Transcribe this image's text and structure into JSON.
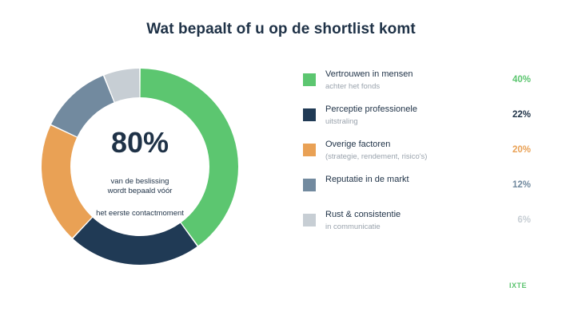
{
  "title": "Wat bepaalt of u op de shortlist komt",
  "center": {
    "value": "80%",
    "subtitle_line1": "van de beslissing",
    "subtitle_line2": "wordt bepaald vóór",
    "subtitle_line3": "het eerste contactmoment"
  },
  "brand": "IXTE",
  "chart_data": {
    "type": "pie",
    "style": "donut",
    "title": "Wat bepaalt of u op de shortlist komt",
    "legend_position": "right",
    "slices": [
      {
        "label": "Vertrouwen in mensen",
        "sublabel": "achter het fonds",
        "value": 40,
        "display": "40%",
        "color": "#5cc670"
      },
      {
        "label": "Perceptie professionele",
        "sublabel": "uitstraling",
        "value": 22,
        "display": "22%",
        "color": "#203a55"
      },
      {
        "label": "Overige factoren",
        "sublabel": "(strategie, rendement, risico's)",
        "value": 20,
        "display": "20%",
        "color": "#e9a155"
      },
      {
        "label": "Reputatie in de markt",
        "sublabel": "",
        "value": 12,
        "display": "12%",
        "color": "#728a9f"
      },
      {
        "label": "Rust & consistentie",
        "sublabel": "in communicatie",
        "value": 6,
        "display": "6%",
        "color": "#c7ced4"
      }
    ]
  }
}
